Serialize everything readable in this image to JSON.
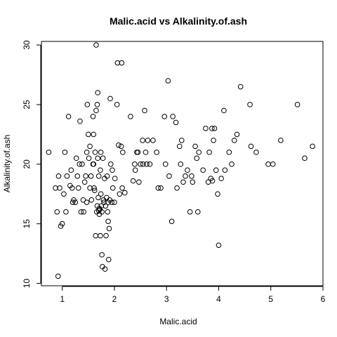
{
  "chart_data": {
    "type": "scatter",
    "title": "Malic.acid vs Alkalinity.of.ash",
    "xlabel": "Malic.acid",
    "ylabel": "Alkalinity.of.ash",
    "xlim": [
      0.6,
      6.0
    ],
    "ylim": [
      9.8,
      30.3
    ],
    "xticks": [
      1,
      2,
      3,
      4,
      5,
      6
    ],
    "yticks": [
      10,
      15,
      20,
      25,
      30
    ],
    "grid": false,
    "legend": "none",
    "point_color": "#000000",
    "points": [
      [
        0.74,
        21.0
      ],
      [
        0.87,
        18.0
      ],
      [
        0.9,
        16.0
      ],
      [
        0.92,
        10.6
      ],
      [
        0.93,
        19.0
      ],
      [
        0.95,
        18.0
      ],
      [
        0.97,
        14.8
      ],
      [
        1.0,
        15.0
      ],
      [
        1.03,
        17.5
      ],
      [
        1.05,
        21.0
      ],
      [
        1.07,
        16.0
      ],
      [
        1.09,
        19.0
      ],
      [
        1.12,
        24.0
      ],
      [
        1.15,
        18.2
      ],
      [
        1.17,
        19.5
      ],
      [
        1.19,
        18.0
      ],
      [
        1.2,
        16.8
      ],
      [
        1.22,
        17.0
      ],
      [
        1.25,
        16.8
      ],
      [
        1.27,
        20.5
      ],
      [
        1.29,
        19.0
      ],
      [
        1.31,
        18.0
      ],
      [
        1.33,
        20.0
      ],
      [
        1.34,
        23.6
      ],
      [
        1.36,
        16.0
      ],
      [
        1.38,
        20.0
      ],
      [
        1.4,
        17.0
      ],
      [
        1.41,
        16.0
      ],
      [
        1.43,
        18.5
      ],
      [
        1.45,
        19.0
      ],
      [
        1.47,
        21.0
      ],
      [
        1.47,
        16.8
      ],
      [
        1.48,
        25.0
      ],
      [
        1.5,
        22.5
      ],
      [
        1.51,
        20.5
      ],
      [
        1.53,
        21.5
      ],
      [
        1.53,
        18.0
      ],
      [
        1.55,
        19.0
      ],
      [
        1.56,
        17.0
      ],
      [
        1.59,
        20.0
      ],
      [
        1.59,
        24.0
      ],
      [
        1.6,
        22.5
      ],
      [
        1.6,
        20.0
      ],
      [
        1.61,
        18.0
      ],
      [
        1.62,
        17.8
      ],
      [
        1.63,
        21.0
      ],
      [
        1.64,
        14.0
      ],
      [
        1.65,
        24.5
      ],
      [
        1.65,
        30.0
      ],
      [
        1.66,
        16.0
      ],
      [
        1.67,
        25.0
      ],
      [
        1.67,
        16.5
      ],
      [
        1.68,
        26.0
      ],
      [
        1.68,
        20.5
      ],
      [
        1.69,
        17.2
      ],
      [
        1.7,
        19.0
      ],
      [
        1.7,
        16.1
      ],
      [
        1.71,
        16.3
      ],
      [
        1.71,
        15.8
      ],
      [
        1.72,
        16.2
      ],
      [
        1.73,
        14.0
      ],
      [
        1.73,
        19.5
      ],
      [
        1.74,
        21.0
      ],
      [
        1.74,
        17.5
      ],
      [
        1.75,
        16.5
      ],
      [
        1.76,
        12.4
      ],
      [
        1.76,
        16.0
      ],
      [
        1.77,
        11.4
      ],
      [
        1.78,
        20.5
      ],
      [
        1.79,
        17.0
      ],
      [
        1.8,
        16.8
      ],
      [
        1.81,
        18.8
      ],
      [
        1.82,
        11.2
      ],
      [
        1.83,
        16.5
      ],
      [
        1.84,
        14.0
      ],
      [
        1.85,
        17.2
      ],
      [
        1.86,
        19.0
      ],
      [
        1.87,
        16.0
      ],
      [
        1.88,
        16.8
      ],
      [
        1.88,
        15.2
      ],
      [
        1.89,
        12.0
      ],
      [
        1.9,
        14.6
      ],
      [
        1.91,
        17.0
      ],
      [
        1.92,
        25.5
      ],
      [
        1.93,
        20.0
      ],
      [
        1.95,
        16.8
      ],
      [
        1.96,
        19.5
      ],
      [
        1.97,
        18.0
      ],
      [
        2.0,
        16.8
      ],
      [
        2.01,
        18.8
      ],
      [
        2.05,
        25.0
      ],
      [
        2.06,
        28.5
      ],
      [
        2.08,
        21.6
      ],
      [
        2.1,
        17.5
      ],
      [
        2.13,
        21.5
      ],
      [
        2.14,
        28.5
      ],
      [
        2.15,
        18.0
      ],
      [
        2.16,
        21.0
      ],
      [
        2.2,
        17.6
      ],
      [
        2.31,
        24.0
      ],
      [
        2.36,
        18.6
      ],
      [
        2.39,
        20.0
      ],
      [
        2.4,
        19.5
      ],
      [
        2.43,
        21.0
      ],
      [
        2.45,
        21.0
      ],
      [
        2.47,
        18.5
      ],
      [
        2.5,
        20.0
      ],
      [
        2.54,
        22.0
      ],
      [
        2.55,
        20.0
      ],
      [
        2.58,
        24.5
      ],
      [
        2.6,
        21.0
      ],
      [
        2.62,
        20.0
      ],
      [
        2.64,
        22.0
      ],
      [
        2.68,
        20.0
      ],
      [
        2.74,
        22.0
      ],
      [
        2.81,
        21.0
      ],
      [
        2.84,
        18.0
      ],
      [
        2.89,
        18.0
      ],
      [
        2.96,
        24.0
      ],
      [
        2.98,
        20.0
      ],
      [
        3.03,
        27.0
      ],
      [
        3.05,
        19.0
      ],
      [
        3.1,
        15.2
      ],
      [
        3.12,
        24.0
      ],
      [
        3.18,
        23.5
      ],
      [
        3.2,
        18.0
      ],
      [
        3.25,
        21.5
      ],
      [
        3.27,
        20.0
      ],
      [
        3.29,
        22.0
      ],
      [
        3.32,
        18.5
      ],
      [
        3.36,
        19.0
      ],
      [
        3.4,
        19.5
      ],
      [
        3.45,
        16.0
      ],
      [
        3.48,
        19.0
      ],
      [
        3.5,
        18.5
      ],
      [
        3.55,
        21.5
      ],
      [
        3.58,
        20.5
      ],
      [
        3.6,
        16.0
      ],
      [
        3.62,
        21.0
      ],
      [
        3.7,
        19.5
      ],
      [
        3.75,
        23.0
      ],
      [
        3.8,
        18.5
      ],
      [
        3.82,
        21.0
      ],
      [
        3.85,
        18.8
      ],
      [
        3.87,
        23.0
      ],
      [
        3.88,
        18.6
      ],
      [
        3.9,
        22.0
      ],
      [
        3.92,
        23.0
      ],
      [
        3.95,
        19.5
      ],
      [
        3.98,
        17.5
      ],
      [
        4.0,
        13.2
      ],
      [
        4.05,
        18.8
      ],
      [
        4.1,
        24.5
      ],
      [
        4.12,
        19.5
      ],
      [
        4.2,
        21.0
      ],
      [
        4.25,
        20.0
      ],
      [
        4.3,
        22.0
      ],
      [
        4.35,
        22.5
      ],
      [
        4.42,
        26.5
      ],
      [
        4.6,
        25.0
      ],
      [
        4.62,
        21.5
      ],
      [
        4.72,
        21.0
      ],
      [
        4.95,
        20.0
      ],
      [
        5.04,
        20.0
      ],
      [
        5.19,
        22.0
      ],
      [
        5.51,
        25.0
      ],
      [
        5.65,
        20.5
      ],
      [
        5.8,
        21.5
      ]
    ]
  }
}
